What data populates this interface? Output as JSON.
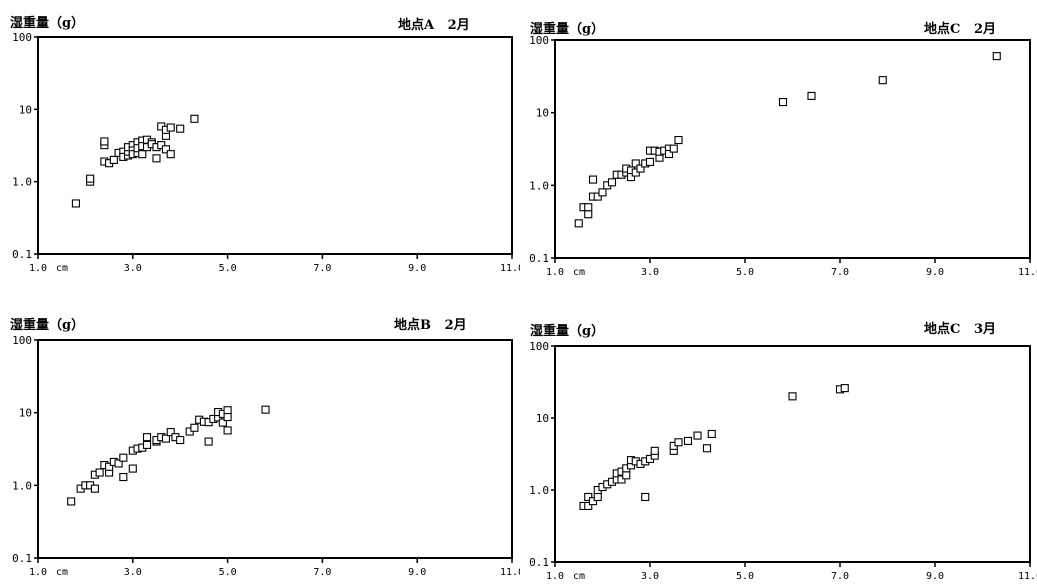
{
  "chart_data": [
    {
      "type": "scatter",
      "ylabel": "湿重量（g）",
      "site": "地点A",
      "month": "2月",
      "yscale": "log",
      "ylim": [
        0.1,
        100
      ],
      "xlim": [
        1.0,
        11.0
      ],
      "y_ticks": [
        "0.1",
        "1.0",
        "10",
        "100"
      ],
      "x_ticks": [
        "1.0",
        "3.0",
        "5.0",
        "7.0",
        "9.0",
        "11.0"
      ],
      "x_unit": "cm",
      "grid": false,
      "points": [
        [
          1.8,
          0.5
        ],
        [
          2.1,
          1.0
        ],
        [
          2.1,
          1.1
        ],
        [
          2.4,
          1.9
        ],
        [
          2.4,
          3.2
        ],
        [
          2.4,
          3.6
        ],
        [
          2.5,
          1.8
        ],
        [
          2.6,
          2.0
        ],
        [
          2.7,
          2.5
        ],
        [
          2.8,
          2.6
        ],
        [
          2.8,
          2.2
        ],
        [
          2.9,
          2.3
        ],
        [
          2.9,
          2.6
        ],
        [
          2.9,
          3.0
        ],
        [
          3.0,
          3.2
        ],
        [
          3.0,
          2.7
        ],
        [
          3.0,
          2.4
        ],
        [
          3.1,
          3.5
        ],
        [
          3.1,
          2.5
        ],
        [
          3.1,
          2.9
        ],
        [
          3.2,
          3.7
        ],
        [
          3.2,
          3.1
        ],
        [
          3.2,
          2.4
        ],
        [
          3.3,
          3.0
        ],
        [
          3.3,
          3.8
        ],
        [
          3.4,
          3.5
        ],
        [
          3.4,
          3.3
        ],
        [
          3.5,
          3.0
        ],
        [
          3.5,
          2.1
        ],
        [
          3.6,
          3.2
        ],
        [
          3.6,
          5.8
        ],
        [
          3.7,
          2.8
        ],
        [
          3.7,
          4.3
        ],
        [
          3.7,
          5.2
        ],
        [
          3.8,
          5.6
        ],
        [
          3.8,
          2.4
        ],
        [
          4.0,
          5.4
        ],
        [
          4.3,
          7.4
        ]
      ]
    },
    {
      "type": "scatter",
      "ylabel": "湿重量（g）",
      "site": "地点C",
      "month": "2月",
      "yscale": "log",
      "ylim": [
        0.1,
        100
      ],
      "xlim": [
        1.0,
        11.0
      ],
      "y_ticks": [
        "0.1",
        "1.0",
        "10",
        "100"
      ],
      "x_ticks": [
        "1.0",
        "3.0",
        "5.0",
        "7.0",
        "9.0",
        "11.0"
      ],
      "x_unit": "cm",
      "grid": false,
      "points": [
        [
          1.5,
          0.3
        ],
        [
          1.6,
          0.5
        ],
        [
          1.7,
          0.4
        ],
        [
          1.7,
          0.5
        ],
        [
          1.8,
          0.7
        ],
        [
          1.8,
          1.2
        ],
        [
          1.9,
          0.7
        ],
        [
          2.0,
          0.8
        ],
        [
          2.1,
          1.0
        ],
        [
          2.2,
          1.1
        ],
        [
          2.3,
          1.4
        ],
        [
          2.4,
          1.4
        ],
        [
          2.5,
          1.5
        ],
        [
          2.5,
          1.7
        ],
        [
          2.6,
          1.6
        ],
        [
          2.6,
          1.3
        ],
        [
          2.7,
          2.0
        ],
        [
          2.7,
          1.5
        ],
        [
          2.8,
          1.7
        ],
        [
          2.9,
          2.0
        ],
        [
          3.0,
          2.1
        ],
        [
          3.0,
          3.0
        ],
        [
          3.1,
          3.0
        ],
        [
          3.2,
          2.4
        ],
        [
          3.2,
          2.9
        ],
        [
          3.3,
          3.0
        ],
        [
          3.4,
          3.2
        ],
        [
          3.4,
          2.7
        ],
        [
          3.5,
          3.2
        ],
        [
          3.6,
          4.2
        ],
        [
          5.8,
          14
        ],
        [
          6.4,
          17
        ],
        [
          7.9,
          28
        ],
        [
          10.3,
          60
        ]
      ]
    },
    {
      "type": "scatter",
      "ylabel": "湿重量（g）",
      "site": "地点B",
      "month": "2月",
      "yscale": "log",
      "ylim": [
        0.1,
        100
      ],
      "xlim": [
        1.0,
        11.0
      ],
      "y_ticks": [
        "0.1",
        "1.0",
        "10",
        "100"
      ],
      "x_ticks": [
        "1.0",
        "3.0",
        "5.0",
        "7.0",
        "9.0",
        "11.0"
      ],
      "x_unit": "cm",
      "grid": false,
      "points": [
        [
          1.7,
          0.6
        ],
        [
          1.9,
          0.9
        ],
        [
          2.0,
          1.0
        ],
        [
          2.1,
          1.0
        ],
        [
          2.2,
          0.9
        ],
        [
          2.2,
          1.4
        ],
        [
          2.3,
          1.5
        ],
        [
          2.4,
          1.9
        ],
        [
          2.5,
          1.5
        ],
        [
          2.5,
          1.8
        ],
        [
          2.6,
          2.1
        ],
        [
          2.7,
          2.0
        ],
        [
          2.8,
          2.4
        ],
        [
          2.8,
          1.3
        ],
        [
          3.0,
          3.0
        ],
        [
          3.0,
          1.7
        ],
        [
          3.1,
          3.2
        ],
        [
          3.2,
          3.3
        ],
        [
          3.3,
          3.6
        ],
        [
          3.3,
          4.6
        ],
        [
          3.5,
          4.0
        ],
        [
          3.5,
          4.2
        ],
        [
          3.6,
          4.6
        ],
        [
          3.7,
          4.4
        ],
        [
          3.8,
          5.4
        ],
        [
          3.9,
          4.6
        ],
        [
          4.0,
          4.2
        ],
        [
          4.2,
          5.5
        ],
        [
          4.3,
          6.2
        ],
        [
          4.4,
          8.0
        ],
        [
          4.5,
          7.5
        ],
        [
          4.6,
          7.4
        ],
        [
          4.6,
          4.0
        ],
        [
          4.7,
          8.2
        ],
        [
          4.8,
          8.6
        ],
        [
          4.8,
          10.2
        ],
        [
          4.9,
          7.3
        ],
        [
          4.9,
          9.6
        ],
        [
          5.0,
          10.8
        ],
        [
          5.0,
          8.7
        ],
        [
          5.0,
          5.7
        ],
        [
          5.8,
          11.0
        ]
      ]
    },
    {
      "type": "scatter",
      "ylabel": "湿重量（g）",
      "site": "地点C",
      "month": "3月",
      "yscale": "log",
      "ylim": [
        0.1,
        100
      ],
      "xlim": [
        1.0,
        11.0
      ],
      "y_ticks": [
        "0.1",
        "1.0",
        "10",
        "100"
      ],
      "x_ticks": [
        "1.0",
        "3.0",
        "5.0",
        "7.0",
        "9.0",
        "11.0"
      ],
      "x_unit": "cm",
      "grid": false,
      "points": [
        [
          1.6,
          0.6
        ],
        [
          1.7,
          0.6
        ],
        [
          1.7,
          0.8
        ],
        [
          1.8,
          0.7
        ],
        [
          1.9,
          0.8
        ],
        [
          1.9,
          1.0
        ],
        [
          2.0,
          1.1
        ],
        [
          2.1,
          1.2
        ],
        [
          2.2,
          1.3
        ],
        [
          2.3,
          1.4
        ],
        [
          2.3,
          1.7
        ],
        [
          2.4,
          1.8
        ],
        [
          2.4,
          1.4
        ],
        [
          2.5,
          1.6
        ],
        [
          2.5,
          2.0
        ],
        [
          2.6,
          2.2
        ],
        [
          2.6,
          2.6
        ],
        [
          2.7,
          2.5
        ],
        [
          2.8,
          2.3
        ],
        [
          2.9,
          2.5
        ],
        [
          2.9,
          0.8
        ],
        [
          3.0,
          2.7
        ],
        [
          3.1,
          3.0
        ],
        [
          3.1,
          3.5
        ],
        [
          3.5,
          3.5
        ],
        [
          3.5,
          4.1
        ],
        [
          3.6,
          4.6
        ],
        [
          3.8,
          4.8
        ],
        [
          4.0,
          5.7
        ],
        [
          4.2,
          3.8
        ],
        [
          4.3,
          6.0
        ],
        [
          6.0,
          20
        ],
        [
          7.0,
          25
        ],
        [
          7.1,
          26
        ]
      ]
    }
  ]
}
